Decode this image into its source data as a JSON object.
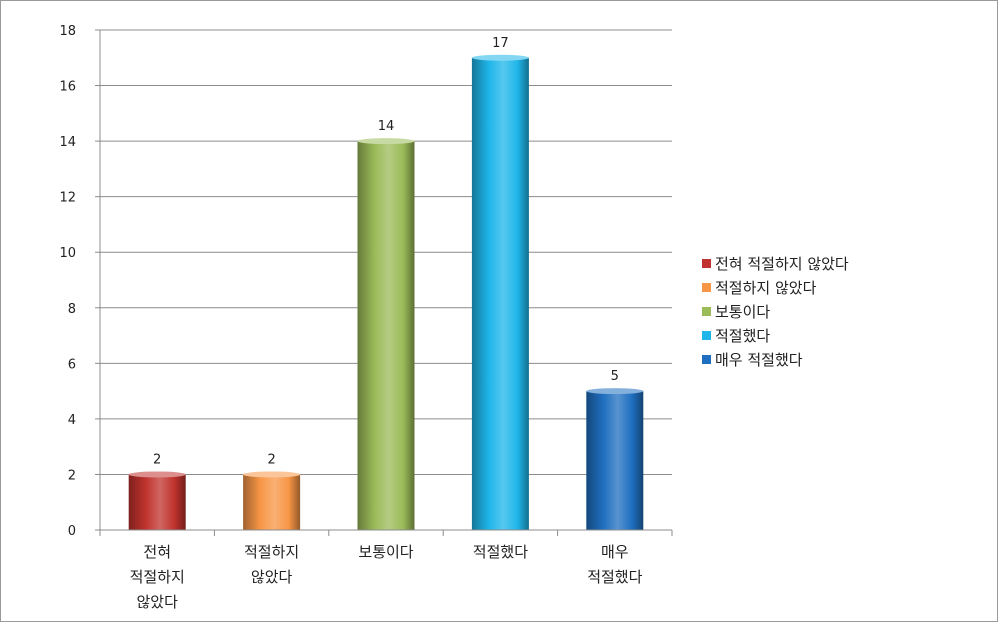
{
  "chart_data": {
    "type": "bar",
    "title": "",
    "xlabel": "",
    "ylabel": "",
    "ylim": [
      0,
      18
    ],
    "yticks": [
      0,
      2,
      4,
      6,
      8,
      10,
      12,
      14,
      16,
      18
    ],
    "grid": true,
    "legend_position": "right",
    "categories": [
      "전혀 적절하지 않았다",
      "적절하지 않았다",
      "보통이다",
      "적절했다",
      "매우 적절했다"
    ],
    "category_tick_lines": [
      [
        "전혀",
        "적절하지",
        "않았다"
      ],
      [
        "적절하지",
        "않았다"
      ],
      [
        "보통이다"
      ],
      [
        "적절했다"
      ],
      [
        "매우",
        "적절했다"
      ]
    ],
    "values": [
      2,
      2,
      14,
      17,
      5
    ],
    "data_labels": [
      "2",
      "2",
      "14",
      "17",
      "5"
    ],
    "colors": [
      "#c0332e",
      "#f79646",
      "#9bbb59",
      "#1fb6ea",
      "#1f6fc0"
    ],
    "legend": [
      "전혀 적절하지 않았다",
      "적절하지 않았다",
      "보통이다",
      "적절했다",
      "매우 적절했다"
    ]
  }
}
